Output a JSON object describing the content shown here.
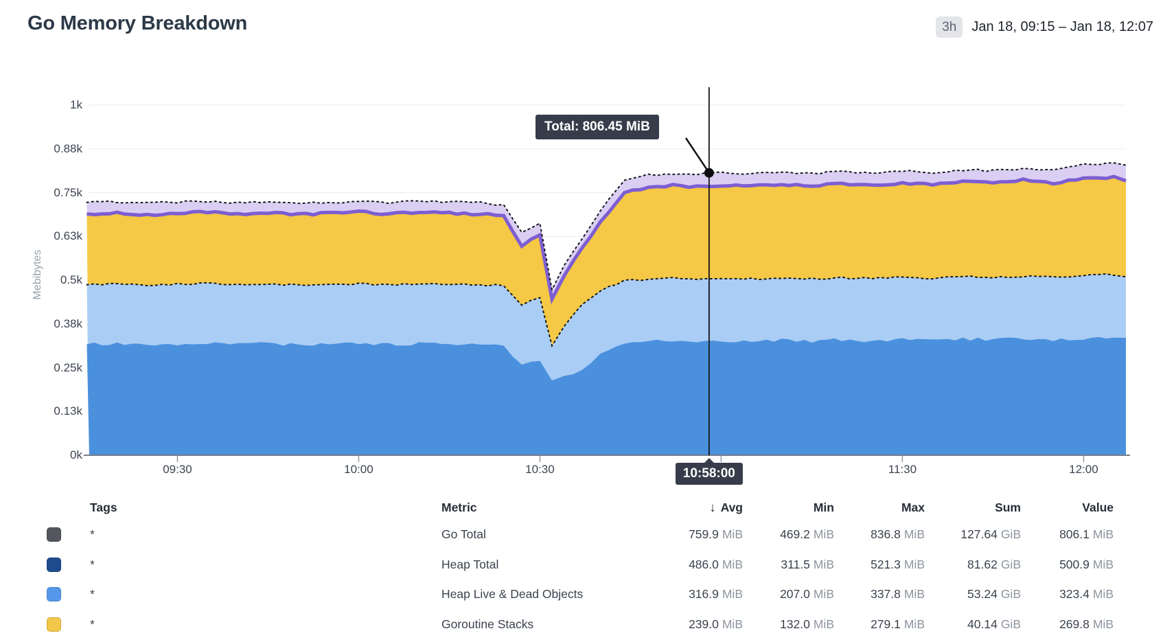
{
  "header": {
    "title": "Go Memory Breakdown",
    "time_range_badge": "3h",
    "time_range": "Jan 18, 09:15 – Jan 18, 12:07"
  },
  "tooltip": {
    "label": "Total: 806.45 MiB",
    "value": 806.45
  },
  "cursor": {
    "time_label": "10:58:00",
    "time": "10:58"
  },
  "axes": {
    "y_title": "Mebibytes",
    "y_ticks": [
      {
        "label": "1k",
        "value": 1000
      },
      {
        "label": "0.88k",
        "value": 875
      },
      {
        "label": "0.75k",
        "value": 750
      },
      {
        "label": "0.63k",
        "value": 625
      },
      {
        "label": "0.5k",
        "value": 500
      },
      {
        "label": "0.38k",
        "value": 375
      },
      {
        "label": "0.25k",
        "value": 250
      },
      {
        "label": "0.13k",
        "value": 125
      },
      {
        "label": "0k",
        "value": 0
      }
    ],
    "x_ticks": [
      "09:30",
      "10:00",
      "10:30",
      "11:00",
      "11:30",
      "12:00"
    ]
  },
  "legend": {
    "columns": {
      "tags": "Tags",
      "metric": "Metric",
      "avg": "Avg",
      "min": "Min",
      "max": "Max",
      "sum": "Sum",
      "value": "Value"
    },
    "sort_indicator": "↓",
    "rows": [
      {
        "swatch": "#54565e",
        "tag": "*",
        "metric": "Go Total",
        "stats": {
          "avg": [
            "759.9",
            "MiB"
          ],
          "min": [
            "469.2",
            "MiB"
          ],
          "max": [
            "836.8",
            "MiB"
          ],
          "sum": [
            "127.64",
            "GiB"
          ],
          "value": [
            "806.1",
            "MiB"
          ]
        }
      },
      {
        "swatch": "#1e4b8d",
        "tag": "*",
        "metric": "Heap Total",
        "stats": {
          "avg": [
            "486.0",
            "MiB"
          ],
          "min": [
            "311.5",
            "MiB"
          ],
          "max": [
            "521.3",
            "MiB"
          ],
          "sum": [
            "81.62",
            "GiB"
          ],
          "value": [
            "500.9",
            "MiB"
          ]
        }
      },
      {
        "swatch": "#5598ea",
        "tag": "*",
        "metric": "Heap Live & Dead Objects",
        "stats": {
          "avg": [
            "316.9",
            "MiB"
          ],
          "min": [
            "207.0",
            "MiB"
          ],
          "max": [
            "337.8",
            "MiB"
          ],
          "sum": [
            "53.24",
            "GiB"
          ],
          "value": [
            "323.4",
            "MiB"
          ]
        }
      },
      {
        "swatch": "#f2c84a",
        "tag": "*",
        "metric": "Goroutine Stacks",
        "stats": {
          "avg": [
            "239.0",
            "MiB"
          ],
          "min": [
            "132.0",
            "MiB"
          ],
          "max": [
            "279.1",
            "MiB"
          ],
          "sum": [
            "40.14",
            "GiB"
          ],
          "value": [
            "269.8",
            "MiB"
          ]
        }
      }
    ]
  },
  "chart_data": {
    "type": "area",
    "title": "Go Memory Breakdown",
    "ylabel": "Mebibytes",
    "ylim": [
      0,
      1000
    ],
    "unit": "MiB",
    "grid": "horizontal",
    "time_domain": [
      "09:15",
      "12:07"
    ],
    "x": [
      "09:15",
      "09:20",
      "09:25",
      "09:30",
      "09:35",
      "09:40",
      "09:45",
      "09:50",
      "09:55",
      "10:00",
      "10:05",
      "10:10",
      "10:15",
      "10:20",
      "10:24",
      "10:27",
      "10:30",
      "10:32",
      "10:34",
      "10:37",
      "10:40",
      "10:44",
      "10:48",
      "10:52",
      "10:56",
      "11:00",
      "11:05",
      "11:10",
      "11:15",
      "11:20",
      "11:25",
      "11:30",
      "11:35",
      "11:40",
      "11:45",
      "11:50",
      "11:55",
      "12:00",
      "12:05",
      "12:07"
    ],
    "series": [
      {
        "name": "Go Total",
        "render": "area-from-zero",
        "fill": "#dacef3",
        "line": "dotted-black",
        "values": [
          722,
          724,
          720,
          723,
          725,
          722,
          724,
          721,
          723,
          725,
          722,
          724,
          723,
          722,
          715,
          635,
          660,
          470,
          540,
          620,
          700,
          788,
          800,
          805,
          803,
          806,
          804,
          808,
          805,
          810,
          806,
          812,
          808,
          815,
          812,
          818,
          815,
          830,
          835,
          826
        ]
      },
      {
        "name": "Heap Total",
        "render": "area-from-zero",
        "fill": "#aacdf5",
        "line": "dotted-black",
        "values": [
          487,
          489,
          486,
          488,
          490,
          487,
          489,
          486,
          488,
          490,
          487,
          489,
          488,
          487,
          484,
          430,
          450,
          315,
          370,
          430,
          470,
          498,
          503,
          505,
          501,
          504,
          503,
          506,
          504,
          507,
          505,
          508,
          506,
          510,
          507,
          512,
          508,
          514,
          516,
          512
        ]
      },
      {
        "name": "Heap Live & Dead Objects",
        "render": "area-from-zero",
        "fill": "#4b90dd",
        "line": "none",
        "values": [
          317,
          319,
          316,
          318,
          320,
          317,
          319,
          316,
          318,
          320,
          317,
          319,
          318,
          317,
          315,
          255,
          270,
          212,
          225,
          245,
          290,
          322,
          326,
          328,
          324,
          327,
          325,
          329,
          326,
          330,
          327,
          331,
          328,
          333,
          329,
          335,
          330,
          334,
          332,
          331
        ]
      },
      {
        "name": "Goroutine Stacks",
        "render": "area-stacked-on-heap-total",
        "fill": "#f5c845",
        "line": "solid-purple",
        "line_color": "#7d5ed1",
        "values": [
          202,
          204,
          201,
          203,
          205,
          202,
          204,
          201,
          203,
          205,
          202,
          204,
          203,
          202,
          200,
          170,
          178,
          133,
          145,
          160,
          195,
          255,
          262,
          265,
          266,
          267,
          265,
          268,
          266,
          269,
          267,
          270,
          268,
          272,
          269,
          274,
          270,
          276,
          278,
          274
        ]
      }
    ]
  }
}
